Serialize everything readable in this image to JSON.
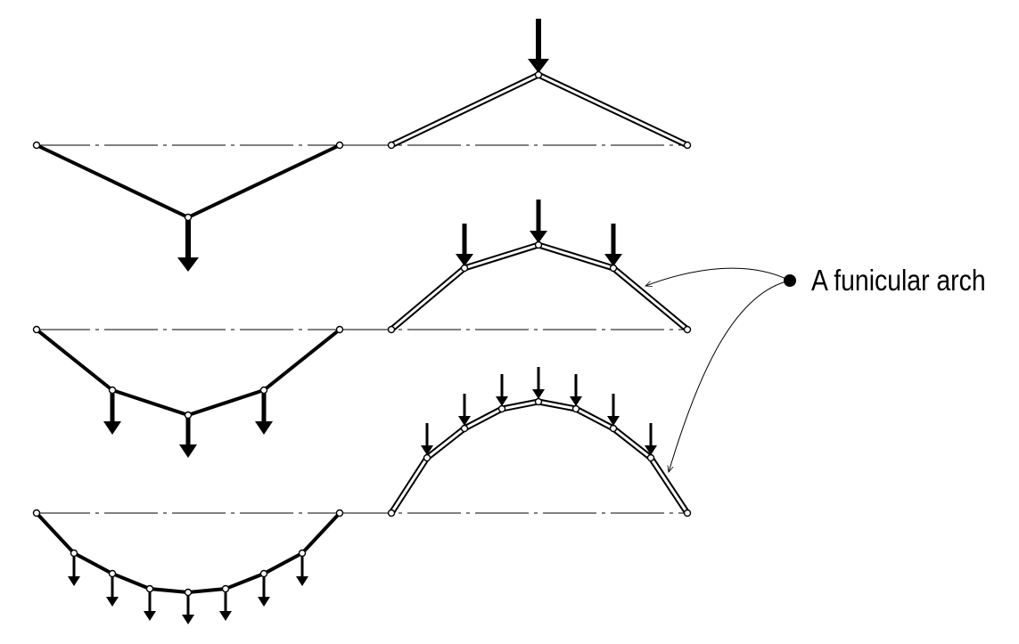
{
  "annotation": {
    "label": "A funicular arch"
  },
  "colors": {
    "ink": "#000000",
    "background": "#ffffff"
  }
}
